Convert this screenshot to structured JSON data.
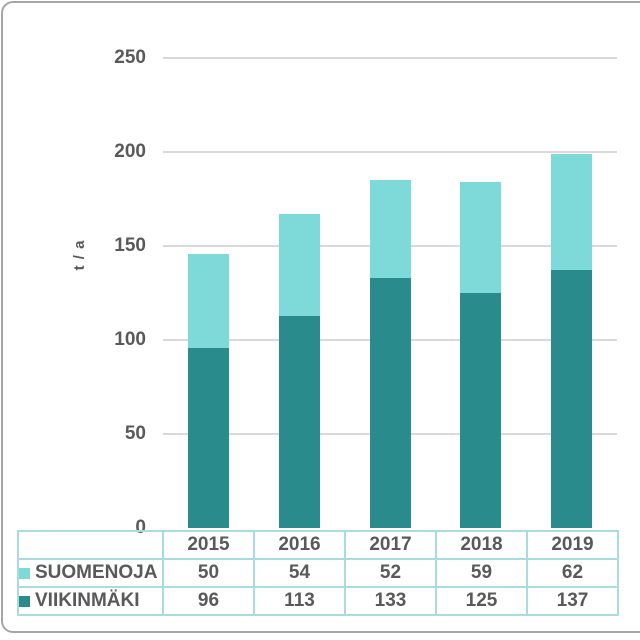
{
  "frame": {
    "border_color": "#a6a6a6"
  },
  "chart_data": {
    "type": "bar",
    "stacked": true,
    "title": "",
    "xlabel": "",
    "ylabel": "t / a",
    "categories": [
      "2015",
      "2016",
      "2017",
      "2018",
      "2019"
    ],
    "series": [
      {
        "name": "SUOMENOJA",
        "color": "#7edad8",
        "values": [
          50,
          54,
          52,
          59,
          62
        ]
      },
      {
        "name": "VIIKINMÄKI",
        "color": "#2a8b8c",
        "values": [
          96,
          113,
          133,
          125,
          137
        ]
      }
    ],
    "stack_order_bottom_to_top": [
      1,
      0
    ],
    "yticks": [
      0,
      50,
      100,
      150,
      200,
      250
    ],
    "ylim": [
      0,
      250
    ],
    "grid": true,
    "gridline_color": "#d9d9d9",
    "text_color": "#595959",
    "table_border_color": "#a8dcdf",
    "legend_position": "table-left"
  }
}
